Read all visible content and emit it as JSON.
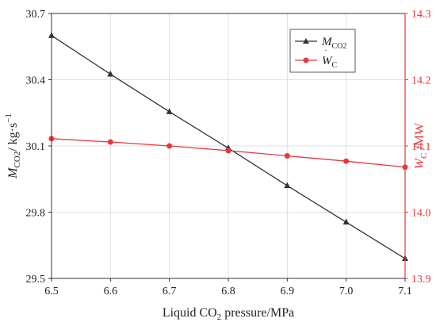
{
  "chart_data": {
    "type": "line",
    "xlabel": {
      "pre": "Liquid CO",
      "sub": "2",
      "post": " pressure/MPa"
    },
    "x": [
      6.5,
      6.6,
      6.7,
      6.8,
      6.9,
      7.0,
      7.1
    ],
    "xlim": [
      6.5,
      7.1
    ],
    "xticks": [
      "6.5",
      "6.6",
      "6.7",
      "6.8",
      "6.9",
      "7.0",
      "7.1"
    ],
    "y_left": {
      "label": {
        "main": "M",
        "sub": "CO2",
        "unit": "/ kg·s",
        "sup": "−1"
      },
      "lim": [
        29.5,
        30.7
      ],
      "ticks": [
        "29.5",
        "29.8",
        "30.1",
        "30.4",
        "30.7"
      ],
      "color": "#333333"
    },
    "y_right": {
      "label": {
        "main": "W",
        "sub": "C",
        "unit": " /MW"
      },
      "lim": [
        13.9,
        14.3
      ],
      "ticks": [
        "13.9",
        "14.0",
        "14.1",
        "14.2",
        "14.3"
      ],
      "color": "#e8383d"
    },
    "series": [
      {
        "name": {
          "main": "M",
          "sub": "CO2"
        },
        "axis": "left",
        "marker": "triangle",
        "color": "#333333",
        "values": [
          30.6,
          30.425,
          30.255,
          30.09,
          29.92,
          29.755,
          29.59
        ]
      },
      {
        "name": {
          "main": "W",
          "sub": "C"
        },
        "axis": "right",
        "marker": "circle",
        "color": "#e8383d",
        "values": [
          14.111,
          14.106,
          14.1,
          14.093,
          14.085,
          14.077,
          14.068
        ]
      }
    ],
    "grid": true,
    "legend": "top-right"
  }
}
